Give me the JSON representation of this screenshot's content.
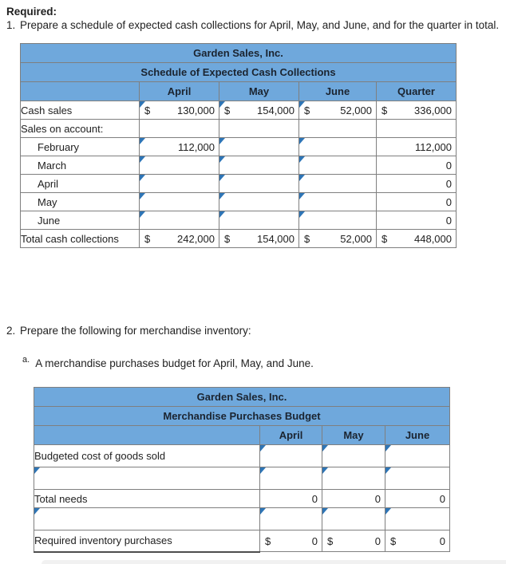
{
  "page": {
    "required_label": "Required:",
    "item1_num": "1.",
    "item1_text": "Prepare a schedule of expected cash collections for April, May, and June, and for the quarter in total.",
    "item2_num": "2.",
    "item2_text": "Prepare the following for merchandise inventory:",
    "item2a_marker": "a.",
    "item2a_text": "A merchandise purchases budget for April, May, and June."
  },
  "colors": {
    "header_bg": "#6FA8DC",
    "input_border": "#2E75B6",
    "grid": "#7f7f7f",
    "text": "#212121"
  },
  "table1": {
    "title": "Garden Sales, Inc.",
    "subtitle": "Schedule of Expected Cash Collections",
    "columns": [
      "April",
      "May",
      "June",
      "Quarter"
    ],
    "rows": [
      {
        "label": "Cash sales",
        "indent": false,
        "label_input": false,
        "cells": [
          {
            "style": "input",
            "dollar": "$",
            "value": "130,000"
          },
          {
            "style": "input",
            "dollar": "$",
            "value": "154,000"
          },
          {
            "style": "input",
            "dollar": "$",
            "value": "52,000"
          },
          {
            "style": "calc",
            "dollar": "$",
            "value": "336,000"
          }
        ]
      },
      {
        "label": "Sales on account:",
        "indent": false,
        "label_input": false,
        "cells": [
          {
            "style": "none",
            "dollar": "",
            "value": ""
          },
          {
            "style": "none",
            "dollar": "",
            "value": ""
          },
          {
            "style": "none",
            "dollar": "",
            "value": ""
          },
          {
            "style": "none",
            "dollar": "",
            "value": ""
          }
        ]
      },
      {
        "label": "February",
        "indent": true,
        "label_input": false,
        "cells": [
          {
            "style": "input",
            "dollar": "",
            "value": "112,000"
          },
          {
            "style": "input",
            "dollar": "",
            "value": ""
          },
          {
            "style": "input",
            "dollar": "",
            "value": ""
          },
          {
            "style": "calc",
            "dollar": "",
            "value": "112,000"
          }
        ]
      },
      {
        "label": "March",
        "indent": true,
        "label_input": false,
        "cells": [
          {
            "style": "input",
            "dollar": "",
            "value": ""
          },
          {
            "style": "input",
            "dollar": "",
            "value": ""
          },
          {
            "style": "input",
            "dollar": "",
            "value": ""
          },
          {
            "style": "calc",
            "dollar": "",
            "value": "0"
          }
        ]
      },
      {
        "label": "April",
        "indent": true,
        "label_input": false,
        "cells": [
          {
            "style": "input",
            "dollar": "",
            "value": ""
          },
          {
            "style": "input",
            "dollar": "",
            "value": ""
          },
          {
            "style": "input",
            "dollar": "",
            "value": ""
          },
          {
            "style": "calc",
            "dollar": "",
            "value": "0"
          }
        ]
      },
      {
        "label": "May",
        "indent": true,
        "label_input": false,
        "cells": [
          {
            "style": "input",
            "dollar": "",
            "value": ""
          },
          {
            "style": "input",
            "dollar": "",
            "value": ""
          },
          {
            "style": "input",
            "dollar": "",
            "value": ""
          },
          {
            "style": "calc",
            "dollar": "",
            "value": "0"
          }
        ]
      },
      {
        "label": "June",
        "indent": true,
        "label_input": false,
        "cells": [
          {
            "style": "input",
            "dollar": "",
            "value": ""
          },
          {
            "style": "input",
            "dollar": "",
            "value": ""
          },
          {
            "style": "input",
            "dollar": "",
            "value": ""
          },
          {
            "style": "calc",
            "dollar": "",
            "value": "0"
          }
        ]
      },
      {
        "label": "Total cash collections",
        "indent": false,
        "label_input": false,
        "cells": [
          {
            "style": "total",
            "dollar": "$",
            "value": "242,000"
          },
          {
            "style": "total",
            "dollar": "$",
            "value": "154,000"
          },
          {
            "style": "total",
            "dollar": "$",
            "value": "52,000"
          },
          {
            "style": "total",
            "dollar": "$",
            "value": "448,000"
          }
        ]
      }
    ]
  },
  "table2": {
    "title": "Garden Sales, Inc.",
    "subtitle": "Merchandise Purchases Budget",
    "columns": [
      "April",
      "May",
      "June"
    ],
    "rows": [
      {
        "label": "Budgeted cost of goods sold",
        "indent": false,
        "label_input": false,
        "cells": [
          {
            "style": "input",
            "dollar": "",
            "value": ""
          },
          {
            "style": "input",
            "dollar": "",
            "value": ""
          },
          {
            "style": "input",
            "dollar": "",
            "value": ""
          }
        ]
      },
      {
        "label": "",
        "indent": false,
        "label_input": true,
        "cells": [
          {
            "style": "input",
            "dollar": "",
            "value": ""
          },
          {
            "style": "input",
            "dollar": "",
            "value": ""
          },
          {
            "style": "input",
            "dollar": "",
            "value": ""
          }
        ]
      },
      {
        "label": "Total needs",
        "indent": false,
        "label_input": false,
        "cells": [
          {
            "style": "calc",
            "dollar": "",
            "value": "0"
          },
          {
            "style": "calc",
            "dollar": "",
            "value": "0"
          },
          {
            "style": "calc",
            "dollar": "",
            "value": "0"
          }
        ]
      },
      {
        "label": "",
        "indent": false,
        "label_input": true,
        "cells": [
          {
            "style": "input",
            "dollar": "",
            "value": ""
          },
          {
            "style": "input",
            "dollar": "",
            "value": ""
          },
          {
            "style": "input",
            "dollar": "",
            "value": ""
          }
        ]
      },
      {
        "label": "Required inventory purchases",
        "indent": false,
        "label_input": false,
        "cells": [
          {
            "style": "total",
            "dollar": "$",
            "value": "0"
          },
          {
            "style": "total",
            "dollar": "$",
            "value": "0"
          },
          {
            "style": "total",
            "dollar": "$",
            "value": "0"
          }
        ]
      }
    ]
  }
}
